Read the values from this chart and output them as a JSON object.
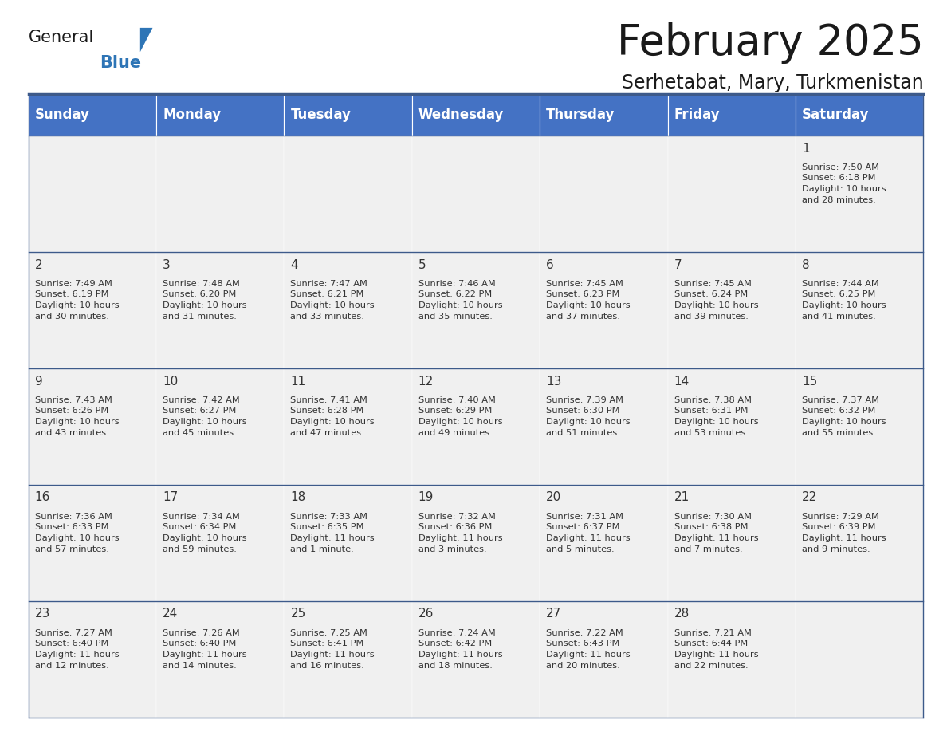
{
  "title": "February 2025",
  "subtitle": "Serhetabat, Mary, Turkmenistan",
  "header_bg": "#4472C4",
  "header_text_color": "#FFFFFF",
  "cell_bg": "#F0F0F0",
  "day_number_color": "#333333",
  "info_text_color": "#333333",
  "border_color": "#3D5A8A",
  "days_of_week": [
    "Sunday",
    "Monday",
    "Tuesday",
    "Wednesday",
    "Thursday",
    "Friday",
    "Saturday"
  ],
  "weeks": [
    [
      {
        "day": null,
        "info": null
      },
      {
        "day": null,
        "info": null
      },
      {
        "day": null,
        "info": null
      },
      {
        "day": null,
        "info": null
      },
      {
        "day": null,
        "info": null
      },
      {
        "day": null,
        "info": null
      },
      {
        "day": 1,
        "info": "Sunrise: 7:50 AM\nSunset: 6:18 PM\nDaylight: 10 hours\nand 28 minutes."
      }
    ],
    [
      {
        "day": 2,
        "info": "Sunrise: 7:49 AM\nSunset: 6:19 PM\nDaylight: 10 hours\nand 30 minutes."
      },
      {
        "day": 3,
        "info": "Sunrise: 7:48 AM\nSunset: 6:20 PM\nDaylight: 10 hours\nand 31 minutes."
      },
      {
        "day": 4,
        "info": "Sunrise: 7:47 AM\nSunset: 6:21 PM\nDaylight: 10 hours\nand 33 minutes."
      },
      {
        "day": 5,
        "info": "Sunrise: 7:46 AM\nSunset: 6:22 PM\nDaylight: 10 hours\nand 35 minutes."
      },
      {
        "day": 6,
        "info": "Sunrise: 7:45 AM\nSunset: 6:23 PM\nDaylight: 10 hours\nand 37 minutes."
      },
      {
        "day": 7,
        "info": "Sunrise: 7:45 AM\nSunset: 6:24 PM\nDaylight: 10 hours\nand 39 minutes."
      },
      {
        "day": 8,
        "info": "Sunrise: 7:44 AM\nSunset: 6:25 PM\nDaylight: 10 hours\nand 41 minutes."
      }
    ],
    [
      {
        "day": 9,
        "info": "Sunrise: 7:43 AM\nSunset: 6:26 PM\nDaylight: 10 hours\nand 43 minutes."
      },
      {
        "day": 10,
        "info": "Sunrise: 7:42 AM\nSunset: 6:27 PM\nDaylight: 10 hours\nand 45 minutes."
      },
      {
        "day": 11,
        "info": "Sunrise: 7:41 AM\nSunset: 6:28 PM\nDaylight: 10 hours\nand 47 minutes."
      },
      {
        "day": 12,
        "info": "Sunrise: 7:40 AM\nSunset: 6:29 PM\nDaylight: 10 hours\nand 49 minutes."
      },
      {
        "day": 13,
        "info": "Sunrise: 7:39 AM\nSunset: 6:30 PM\nDaylight: 10 hours\nand 51 minutes."
      },
      {
        "day": 14,
        "info": "Sunrise: 7:38 AM\nSunset: 6:31 PM\nDaylight: 10 hours\nand 53 minutes."
      },
      {
        "day": 15,
        "info": "Sunrise: 7:37 AM\nSunset: 6:32 PM\nDaylight: 10 hours\nand 55 minutes."
      }
    ],
    [
      {
        "day": 16,
        "info": "Sunrise: 7:36 AM\nSunset: 6:33 PM\nDaylight: 10 hours\nand 57 minutes."
      },
      {
        "day": 17,
        "info": "Sunrise: 7:34 AM\nSunset: 6:34 PM\nDaylight: 10 hours\nand 59 minutes."
      },
      {
        "day": 18,
        "info": "Sunrise: 7:33 AM\nSunset: 6:35 PM\nDaylight: 11 hours\nand 1 minute."
      },
      {
        "day": 19,
        "info": "Sunrise: 7:32 AM\nSunset: 6:36 PM\nDaylight: 11 hours\nand 3 minutes."
      },
      {
        "day": 20,
        "info": "Sunrise: 7:31 AM\nSunset: 6:37 PM\nDaylight: 11 hours\nand 5 minutes."
      },
      {
        "day": 21,
        "info": "Sunrise: 7:30 AM\nSunset: 6:38 PM\nDaylight: 11 hours\nand 7 minutes."
      },
      {
        "day": 22,
        "info": "Sunrise: 7:29 AM\nSunset: 6:39 PM\nDaylight: 11 hours\nand 9 minutes."
      }
    ],
    [
      {
        "day": 23,
        "info": "Sunrise: 7:27 AM\nSunset: 6:40 PM\nDaylight: 11 hours\nand 12 minutes."
      },
      {
        "day": 24,
        "info": "Sunrise: 7:26 AM\nSunset: 6:40 PM\nDaylight: 11 hours\nand 14 minutes."
      },
      {
        "day": 25,
        "info": "Sunrise: 7:25 AM\nSunset: 6:41 PM\nDaylight: 11 hours\nand 16 minutes."
      },
      {
        "day": 26,
        "info": "Sunrise: 7:24 AM\nSunset: 6:42 PM\nDaylight: 11 hours\nand 18 minutes."
      },
      {
        "day": 27,
        "info": "Sunrise: 7:22 AM\nSunset: 6:43 PM\nDaylight: 11 hours\nand 20 minutes."
      },
      {
        "day": 28,
        "info": "Sunrise: 7:21 AM\nSunset: 6:44 PM\nDaylight: 11 hours\nand 22 minutes."
      },
      {
        "day": null,
        "info": null
      }
    ]
  ],
  "logo_general_color": "#1A1A1A",
  "logo_blue_color": "#2E75B6",
  "title_fontsize": 38,
  "subtitle_fontsize": 17,
  "header_fontsize": 12,
  "day_num_fontsize": 11,
  "info_fontsize": 8.2
}
